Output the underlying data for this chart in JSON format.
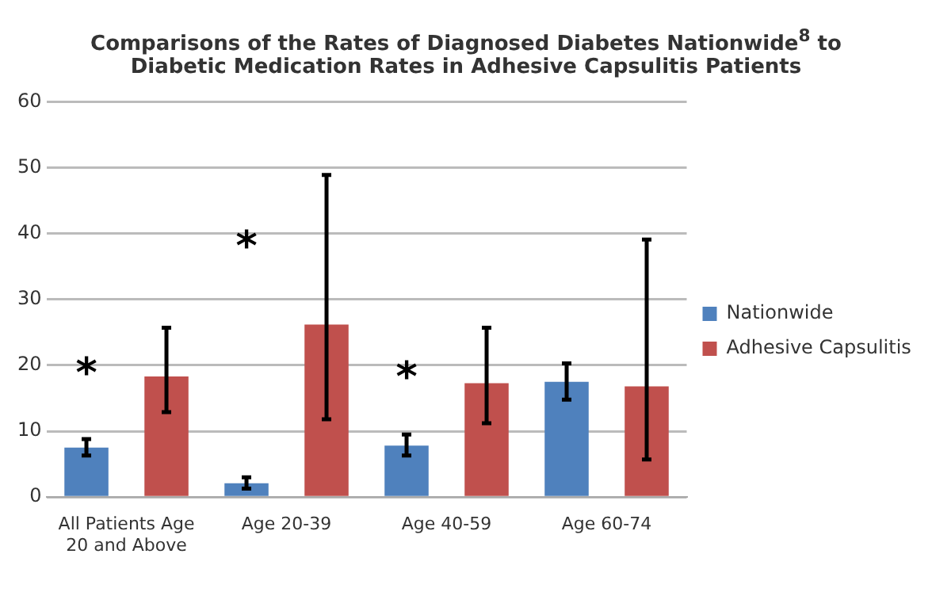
{
  "chart_data": {
    "type": "bar",
    "title": "Comparisons of the Rates of Diagnosed Diabetes Nationwide$^{8}$ to Diabetic Medication Rates in Adhesive Capsulitis Patients",
    "categories": [
      "All Patients Age 20 and Above",
      "Age 20-39",
      "Age 40-59",
      "Age 60-74"
    ],
    "series": [
      {
        "name": "Nationwide",
        "color": "#4f81bd",
        "values": [
          7.5,
          2.1,
          7.8,
          17.5
        ],
        "errors": [
          [
            6.3,
            8.8
          ],
          [
            1.3,
            3.0
          ],
          [
            6.3,
            9.5
          ],
          [
            14.8,
            20.3
          ]
        ]
      },
      {
        "name": "Adhesive Capsulitis",
        "color": "#c0504d",
        "values": [
          18.3,
          26.2,
          17.3,
          16.8
        ],
        "errors": [
          [
            12.9,
            25.7
          ],
          [
            11.8,
            48.9
          ],
          [
            11.2,
            25.7
          ],
          [
            5.7,
            39.1
          ]
        ]
      }
    ],
    "annotations": [
      "*",
      "*",
      "*"
    ],
    "ylim": [
      0,
      60
    ],
    "yticks": [
      0,
      10,
      20,
      30,
      40,
      50,
      60
    ],
    "grid": "y",
    "legend": "right"
  }
}
